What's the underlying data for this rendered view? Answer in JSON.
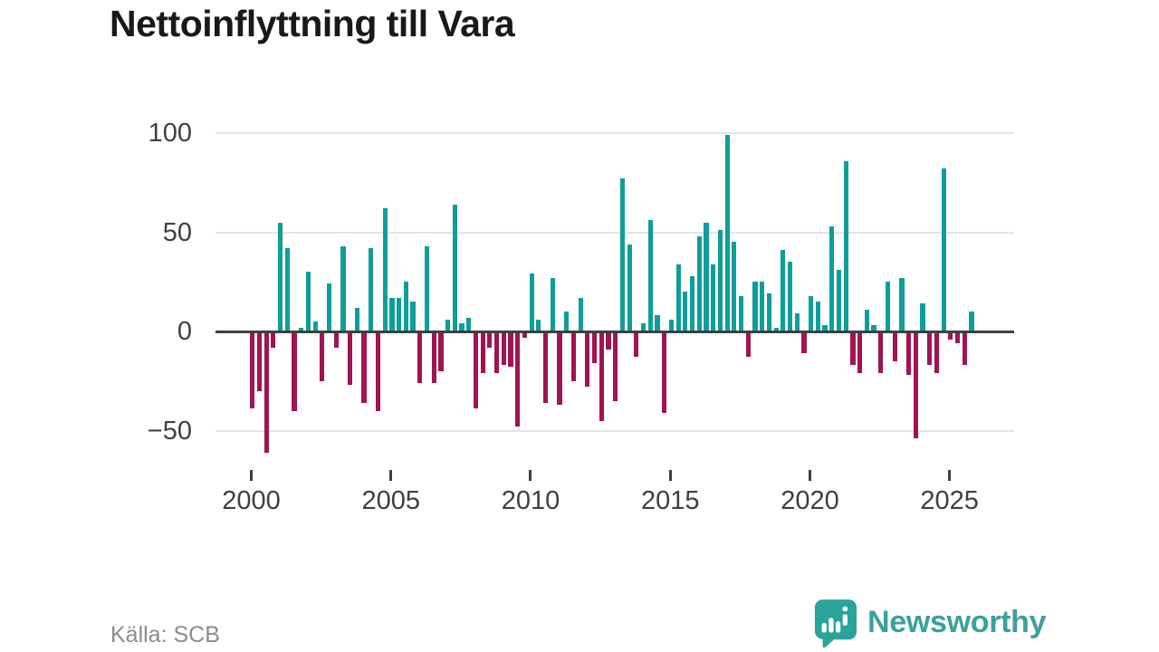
{
  "title": "Nettoinflyttning till Vara",
  "source": {
    "label": "Källa: SCB"
  },
  "branding": {
    "name": "Newsworthy",
    "logo_icon": "speech-bubble-bar-chart-exclamation",
    "brand_color": "#3ba19c"
  },
  "chart_data": {
    "type": "bar",
    "title": "Nettoinflyttning till Vara",
    "frequency": "quarterly",
    "start_year": 2000,
    "x_tick_labels": [
      "2000",
      "2005",
      "2010",
      "2015",
      "2020",
      "2025"
    ],
    "y_ticks": [
      100,
      50,
      0,
      -50
    ],
    "ylim": [
      -65,
      105
    ],
    "grid": true,
    "legend": "none",
    "values": [
      -39,
      -30,
      -61,
      -8,
      55,
      42,
      -40,
      2,
      30,
      5,
      -25,
      24,
      -8,
      43,
      -27,
      12,
      -36,
      42,
      -40,
      62,
      17,
      17,
      25,
      15,
      -26,
      43,
      -26,
      -20,
      6,
      64,
      4,
      7,
      -39,
      -21,
      -8,
      -21,
      -17,
      -18,
      -48,
      -3,
      29,
      6,
      -36,
      27,
      -37,
      10,
      -25,
      17,
      -28,
      -16,
      -45,
      -9,
      -35,
      77,
      44,
      -13,
      4,
      56,
      8,
      -41,
      6,
      34,
      20,
      28,
      48,
      55,
      34,
      51,
      99,
      45,
      18,
      -13,
      25,
      25,
      19,
      2,
      41,
      35,
      9,
      -11,
      18,
      15,
      3,
      53,
      31,
      86,
      -17,
      -21,
      11,
      3,
      -21,
      25,
      -15,
      27,
      -22,
      -54,
      14,
      -17,
      -21,
      82,
      -4,
      -6,
      -17,
      10
    ],
    "colors": {
      "positive": "#0d9e9c",
      "negative": "#a11352",
      "axis": "#3f3f3f",
      "grid": "#e4e4e4",
      "title": "#191919",
      "tick_label": "#404040",
      "source_text": "#8b8b8b"
    }
  }
}
